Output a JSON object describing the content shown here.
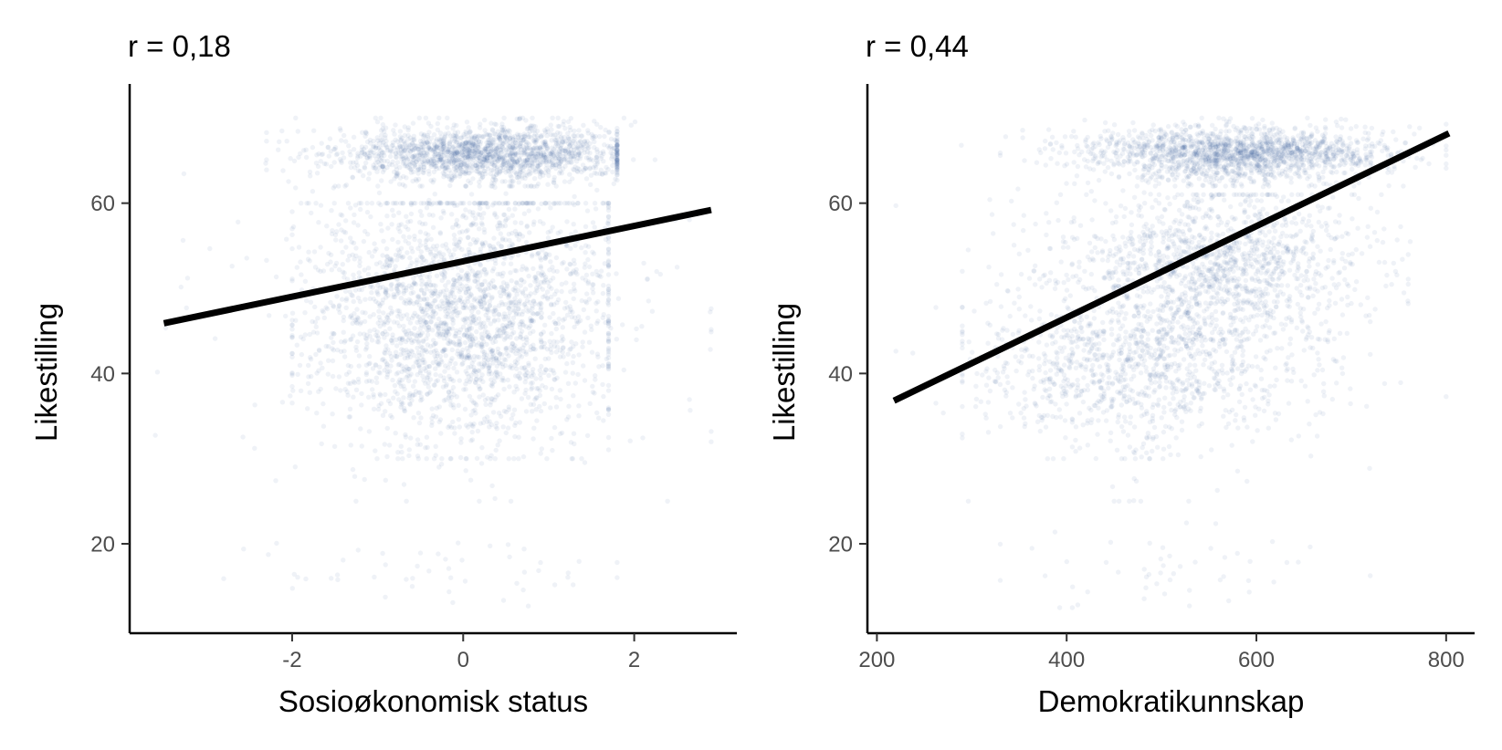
{
  "chart_data": [
    {
      "type": "scatter",
      "title": "r = 0,18",
      "xlabel": "Sosioøkonomisk status",
      "ylabel": "Likestilling",
      "xlim": [
        -3.9,
        3.2
      ],
      "ylim": [
        9.5,
        74
      ],
      "xticks": [
        -2,
        0,
        2
      ],
      "xtick_labels": [
        "-2",
        "0",
        "2"
      ],
      "yticks": [
        20,
        40,
        60
      ],
      "ytick_labels": [
        "20",
        "40",
        "60"
      ],
      "point_color": "#2e5597",
      "grid": false,
      "legend": "none",
      "regression_line": {
        "x": [
          -3.5,
          2.9
        ],
        "y": [
          45.9,
          59.2
        ],
        "color": "#000000"
      },
      "point_clusters": [
        {
          "x_mean": 0.3,
          "x_sd": 0.9,
          "x_range": [
            -2.3,
            1.8
          ],
          "y_mean": 65.8,
          "y_sd": 1.6,
          "y_range": [
            62,
            70
          ],
          "count": 1700
        },
        {
          "x_mean": 0.0,
          "x_sd": 0.9,
          "x_range": [
            -2.0,
            1.7
          ],
          "y_mean": 47,
          "y_sd": 7.5,
          "y_range": [
            30,
            60
          ],
          "count": 2200
        },
        {
          "x_mean": 0.0,
          "x_sd": 1.3,
          "x_range": [
            -3.6,
            2.9
          ],
          "y_mean": 47,
          "y_sd": 11,
          "y_range": [
            25,
            70
          ],
          "count": 350
        },
        {
          "x_mean": 0.0,
          "x_sd": 1.1,
          "x_range": [
            -2.8,
            1.8
          ],
          "y_mean": 17,
          "y_sd": 2.5,
          "y_range": [
            12.5,
            23
          ],
          "count": 50
        }
      ]
    },
    {
      "type": "scatter",
      "title": "r = 0,44",
      "xlabel": "Demokratikunnskap",
      "ylabel": "Likestilling",
      "xlim": [
        190,
        830
      ],
      "ylim": [
        9.5,
        74
      ],
      "xticks": [
        200,
        400,
        600,
        800
      ],
      "xtick_labels": [
        "200",
        "400",
        "600",
        "800"
      ],
      "yticks": [
        20,
        40,
        60
      ],
      "ytick_labels": [
        "20",
        "40",
        "60"
      ],
      "point_color": "#2e5597",
      "grid": false,
      "legend": "none",
      "regression_line": {
        "x": [
          218,
          803
        ],
        "y": [
          36.8,
          68.2
        ],
        "color": "#000000"
      },
      "point_clusters": [
        {
          "x_mean": 580,
          "x_sd": 80,
          "x_range": [
            330,
            800
          ],
          "y_mean": 65.8,
          "y_sd": 1.6,
          "y_range": [
            62,
            70
          ],
          "count": 1700
        },
        {
          "x_mean": 470,
          "x_sd": 85,
          "x_range": [
            290,
            720
          ],
          "y_mean": 41,
          "y_sd": 4.5,
          "y_range": [
            30,
            52
          ],
          "count": 1000
        },
        {
          "x_mean": 560,
          "x_sd": 75,
          "x_range": [
            350,
            760
          ],
          "y_mean": 53,
          "y_sd": 4.5,
          "y_range": [
            44,
            61
          ],
          "count": 1200
        },
        {
          "x_mean": 510,
          "x_sd": 120,
          "x_range": [
            220,
            800
          ],
          "y_mean": 47,
          "y_sd": 10,
          "y_range": [
            25,
            70
          ],
          "count": 350
        },
        {
          "x_mean": 500,
          "x_sd": 100,
          "x_range": [
            330,
            720
          ],
          "y_mean": 17,
          "y_sd": 2.5,
          "y_range": [
            12.5,
            23
          ],
          "count": 50
        }
      ]
    }
  ]
}
